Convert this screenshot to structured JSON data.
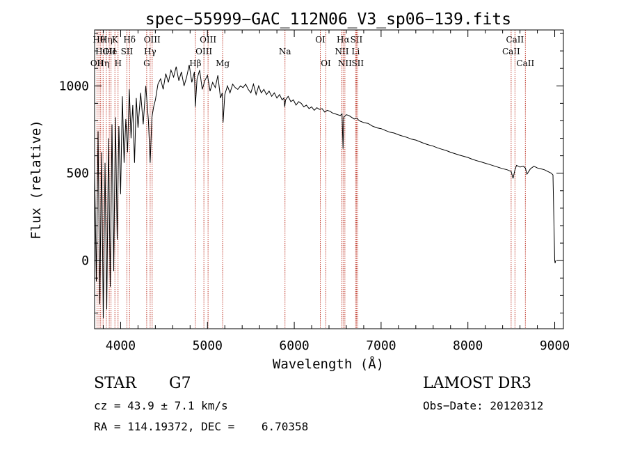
{
  "chart_data": {
    "type": "line",
    "title": "spec−55999−GAC_112N06_V3_sp06−139.fits",
    "xlabel": "Wavelength (Å)",
    "ylabel": "Flux (relative)",
    "xlim": [
      3700,
      9100
    ],
    "ylim": [
      -390,
      1320
    ],
    "xticks": [
      {
        "value": 4000,
        "label": "4000"
      },
      {
        "value": 5000,
        "label": "5000"
      },
      {
        "value": 6000,
        "label": "6000"
      },
      {
        "value": 7000,
        "label": "7000"
      },
      {
        "value": 8000,
        "label": "8000"
      },
      {
        "value": 9000,
        "label": "9000"
      }
    ],
    "yticks": [
      {
        "value": 0,
        "label": "0"
      },
      {
        "value": 500,
        "label": "500"
      },
      {
        "value": 1000,
        "label": "1000"
      }
    ],
    "series": [
      {
        "name": "spectrum",
        "x": [
          3700,
          3720,
          3740,
          3760,
          3780,
          3800,
          3820,
          3840,
          3860,
          3880,
          3900,
          3920,
          3940,
          3960,
          3980,
          4000,
          4020,
          4040,
          4060,
          4080,
          4100,
          4120,
          4140,
          4160,
          4180,
          4200,
          4230,
          4260,
          4290,
          4320,
          4340,
          4360,
          4380,
          4400,
          4430,
          4460,
          4490,
          4520,
          4550,
          4580,
          4610,
          4640,
          4670,
          4700,
          4730,
          4760,
          4790,
          4820,
          4850,
          4860,
          4880,
          4910,
          4940,
          4970,
          5000,
          5030,
          5060,
          5090,
          5120,
          5150,
          5170,
          5180,
          5200,
          5230,
          5260,
          5290,
          5320,
          5350,
          5380,
          5410,
          5440,
          5470,
          5500,
          5530,
          5560,
          5590,
          5620,
          5650,
          5680,
          5710,
          5740,
          5770,
          5800,
          5830,
          5860,
          5880,
          5890,
          5900,
          5930,
          5960,
          5990,
          6020,
          6050,
          6080,
          6110,
          6140,
          6170,
          6200,
          6230,
          6260,
          6290,
          6320,
          6350,
          6380,
          6410,
          6440,
          6470,
          6500,
          6530,
          6550,
          6562,
          6570,
          6600,
          6630,
          6660,
          6690,
          6720,
          6750,
          6800,
          6850,
          6900,
          6950,
          7000,
          7050,
          7100,
          7150,
          7200,
          7250,
          7300,
          7350,
          7400,
          7450,
          7500,
          7550,
          7600,
          7650,
          7700,
          7750,
          7800,
          7850,
          7900,
          7950,
          8000,
          8050,
          8100,
          8150,
          8200,
          8250,
          8300,
          8350,
          8400,
          8450,
          8498,
          8520,
          8542,
          8560,
          8600,
          8640,
          8662,
          8680,
          8720,
          8760,
          8800,
          8840,
          8880,
          8920,
          8960,
          8980,
          9000,
          9005,
          9010
        ],
        "y": [
          520,
          -120,
          740,
          -250,
          620,
          -330,
          560,
          -280,
          700,
          -150,
          780,
          -60,
          820,
          120,
          770,
          380,
          940,
          560,
          810,
          620,
          980,
          700,
          890,
          560,
          930,
          760,
          960,
          780,
          1000,
          800,
          560,
          820,
          880,
          920,
          1010,
          1040,
          980,
          1070,
          1020,
          1090,
          1050,
          1110,
          1030,
          1080,
          1000,
          1050,
          1120,
          1020,
          1080,
          880,
          1040,
          1090,
          980,
          1030,
          1060,
          970,
          1020,
          990,
          1060,
          930,
          960,
          790,
          950,
          1000,
          960,
          1010,
          990,
          980,
          1000,
          990,
          1010,
          980,
          960,
          1010,
          950,
          1000,
          960,
          980,
          950,
          970,
          940,
          960,
          930,
          950,
          920,
          930,
          880,
          920,
          940,
          910,
          920,
          890,
          910,
          900,
          880,
          890,
          870,
          880,
          860,
          875,
          865,
          870,
          850,
          860,
          855,
          845,
          840,
          835,
          830,
          840,
          640,
          820,
          835,
          830,
          820,
          810,
          815,
          800,
          790,
          785,
          770,
          760,
          755,
          745,
          735,
          730,
          720,
          712,
          705,
          695,
          690,
          680,
          670,
          662,
          655,
          645,
          637,
          630,
          620,
          612,
          604,
          597,
          590,
          580,
          572,
          565,
          557,
          550,
          542,
          534,
          526,
          520,
          510,
          470,
          520,
          545,
          535,
          540,
          530,
          495,
          525,
          540,
          530,
          525,
          520,
          510,
          500,
          490,
          1,
          -15,
          0
        ]
      }
    ],
    "line_markers": [
      {
        "wavelength": 3728,
        "label": "OII",
        "row": 2
      },
      {
        "wavelength": 3750,
        "label": "Hθ",
        "row": 0
      },
      {
        "wavelength": 3770,
        "label": "Hι",
        "row": 1
      },
      {
        "wavelength": 3798,
        "label": "Hη",
        "row": 2
      },
      {
        "wavelength": 3835,
        "label": "Hη",
        "row": 0
      },
      {
        "wavelength": 3869,
        "label": "OII",
        "row": 1
      },
      {
        "wavelength": 3889,
        "label": "He",
        "row": 1
      },
      {
        "wavelength": 3934,
        "label": "K",
        "row": 0
      },
      {
        "wavelength": 3970,
        "label": "H",
        "row": 2
      },
      {
        "wavelength": 4072,
        "label": "SII",
        "row": 1
      },
      {
        "wavelength": 4102,
        "label": "Hδ",
        "row": 0
      },
      {
        "wavelength": 4300,
        "label": "G",
        "row": 2
      },
      {
        "wavelength": 4340,
        "label": "Hγ",
        "row": 1
      },
      {
        "wavelength": 4363,
        "label": "OIII",
        "row": 0
      },
      {
        "wavelength": 4861,
        "label": "Hβ",
        "row": 2
      },
      {
        "wavelength": 4959,
        "label": "OIII",
        "row": 1
      },
      {
        "wavelength": 5007,
        "label": "OIII",
        "row": 0
      },
      {
        "wavelength": 5175,
        "label": "Mg",
        "row": 2
      },
      {
        "wavelength": 5893,
        "label": "Na",
        "row": 1
      },
      {
        "wavelength": 6300,
        "label": "OI",
        "row": 0
      },
      {
        "wavelength": 6364,
        "label": "OI",
        "row": 2
      },
      {
        "wavelength": 6548,
        "label": "NII",
        "row": 1
      },
      {
        "wavelength": 6563,
        "label": "Hα",
        "row": 0
      },
      {
        "wavelength": 6583,
        "label": "NII",
        "row": 2
      },
      {
        "wavelength": 6707,
        "label": "Li",
        "row": 1
      },
      {
        "wavelength": 6716,
        "label": "SII",
        "row": 0
      },
      {
        "wavelength": 6731,
        "label": "SII",
        "row": 2
      },
      {
        "wavelength": 8498,
        "label": "CaII",
        "row": 1
      },
      {
        "wavelength": 8542,
        "label": "CaII",
        "row": 0
      },
      {
        "wavelength": 8662,
        "label": "CaII",
        "row": 2
      }
    ],
    "colors": {
      "axis": "#000000",
      "series": "#000000",
      "marker_line": "#c0392b"
    }
  },
  "info": {
    "class_label": "STAR",
    "subclass": "G7",
    "redshift": "cz = 43.9 ± 7.1 km/s",
    "coords": "RA = 114.19372, DEC =    6.70358",
    "survey": "LAMOST DR3",
    "obs_date": "Obs−Date: 20120312"
  }
}
